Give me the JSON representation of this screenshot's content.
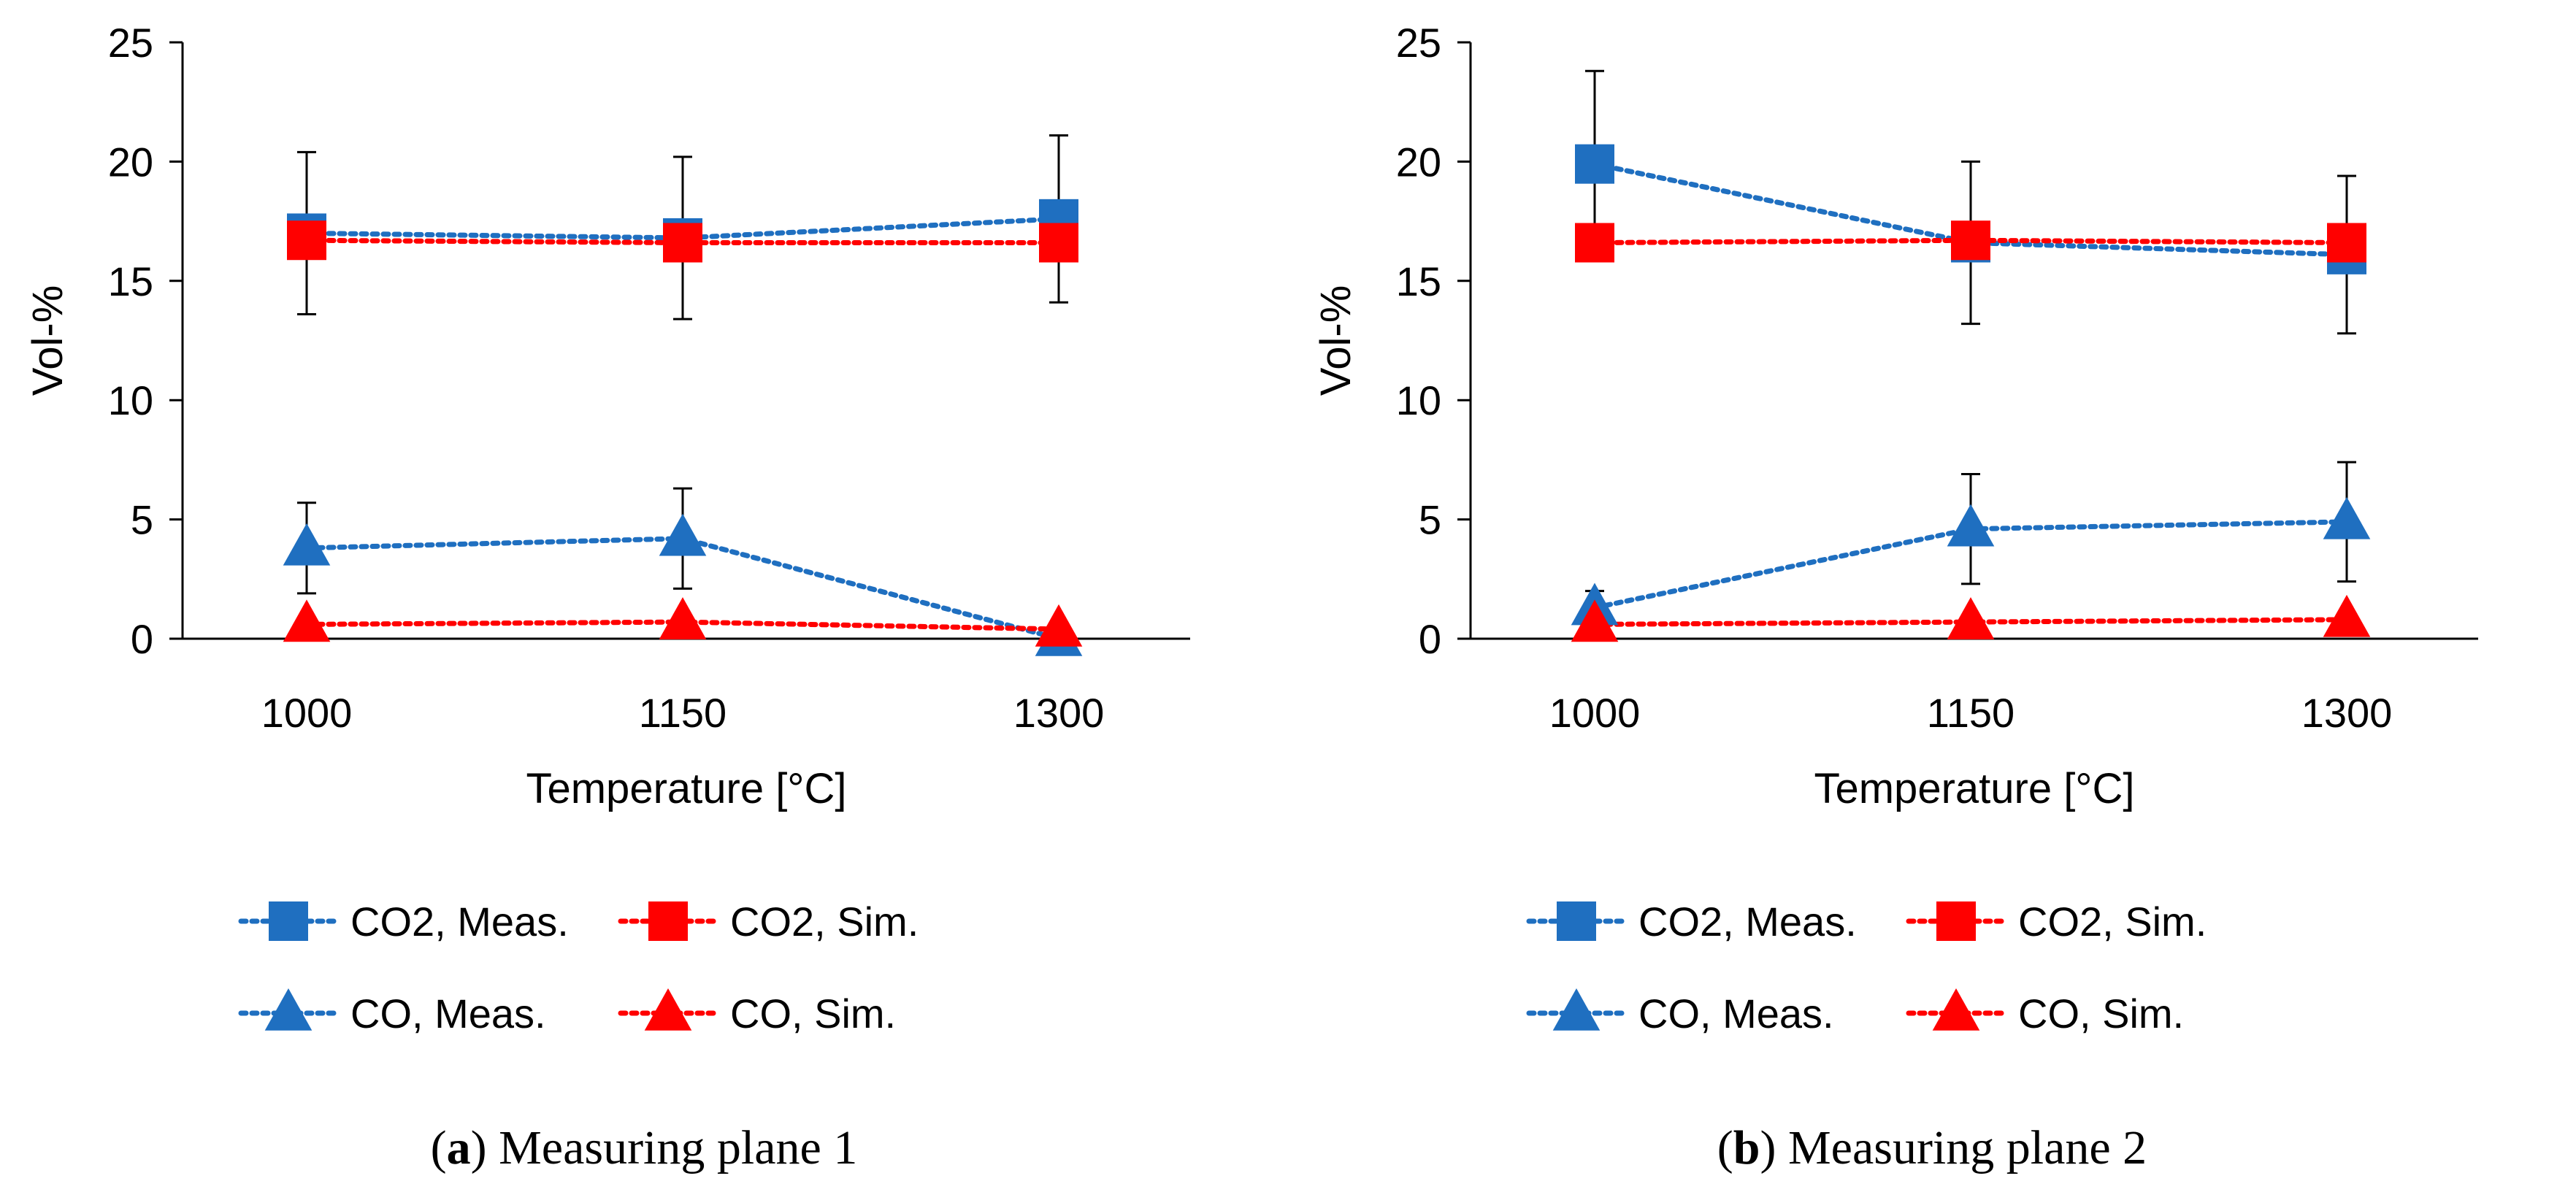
{
  "chart_data": [
    {
      "type": "line",
      "xlabel": "Temperature [°C]",
      "ylabel": "Vol-%",
      "categories": [
        "1000",
        "1150",
        "1300"
      ],
      "ylim": [
        0,
        25
      ],
      "yticks": [
        0,
        5,
        10,
        15,
        20,
        25
      ],
      "grid": false,
      "legend_position": "bottom",
      "series": [
        {
          "name": "CO2, Meas.",
          "values": [
            17.0,
            16.8,
            17.6
          ],
          "error": [
            3.4,
            3.4,
            3.5
          ],
          "color": "#1f6fc0",
          "marker": "square"
        },
        {
          "name": "CO2, Sim.",
          "values": [
            16.7,
            16.6,
            16.6
          ],
          "color": "#ff0000",
          "marker": "square"
        },
        {
          "name": "CO, Meas.",
          "values": [
            3.8,
            4.2,
            0.0
          ],
          "error": [
            1.9,
            2.1,
            0.0
          ],
          "color": "#1f6fc0",
          "marker": "triangle"
        },
        {
          "name": "CO, Sim.",
          "values": [
            0.6,
            0.7,
            0.4
          ],
          "color": "#ff0000",
          "marker": "triangle"
        }
      ],
      "caption": {
        "letter": "a",
        "text": "Measuring plane 1"
      }
    },
    {
      "type": "line",
      "xlabel": "Temperature [°C]",
      "ylabel": "Vol-%",
      "categories": [
        "1000",
        "1150",
        "1300"
      ],
      "ylim": [
        0,
        25
      ],
      "yticks": [
        0,
        5,
        10,
        15,
        20,
        25
      ],
      "grid": false,
      "legend_position": "bottom",
      "series": [
        {
          "name": "CO2, Meas.",
          "values": [
            19.9,
            16.6,
            16.1
          ],
          "error": [
            3.9,
            3.4,
            3.3
          ],
          "color": "#1f6fc0",
          "marker": "square"
        },
        {
          "name": "CO2, Sim.",
          "values": [
            16.6,
            16.7,
            16.6
          ],
          "color": "#ff0000",
          "marker": "square"
        },
        {
          "name": "CO, Meas.",
          "values": [
            1.3,
            4.6,
            4.9
          ],
          "error": [
            0.7,
            2.3,
            2.5
          ],
          "color": "#1f6fc0",
          "marker": "triangle"
        },
        {
          "name": "CO, Sim.",
          "values": [
            0.6,
            0.7,
            0.8
          ],
          "color": "#ff0000",
          "marker": "triangle"
        }
      ],
      "caption": {
        "letter": "b",
        "text": "Measuring plane 2"
      }
    }
  ]
}
